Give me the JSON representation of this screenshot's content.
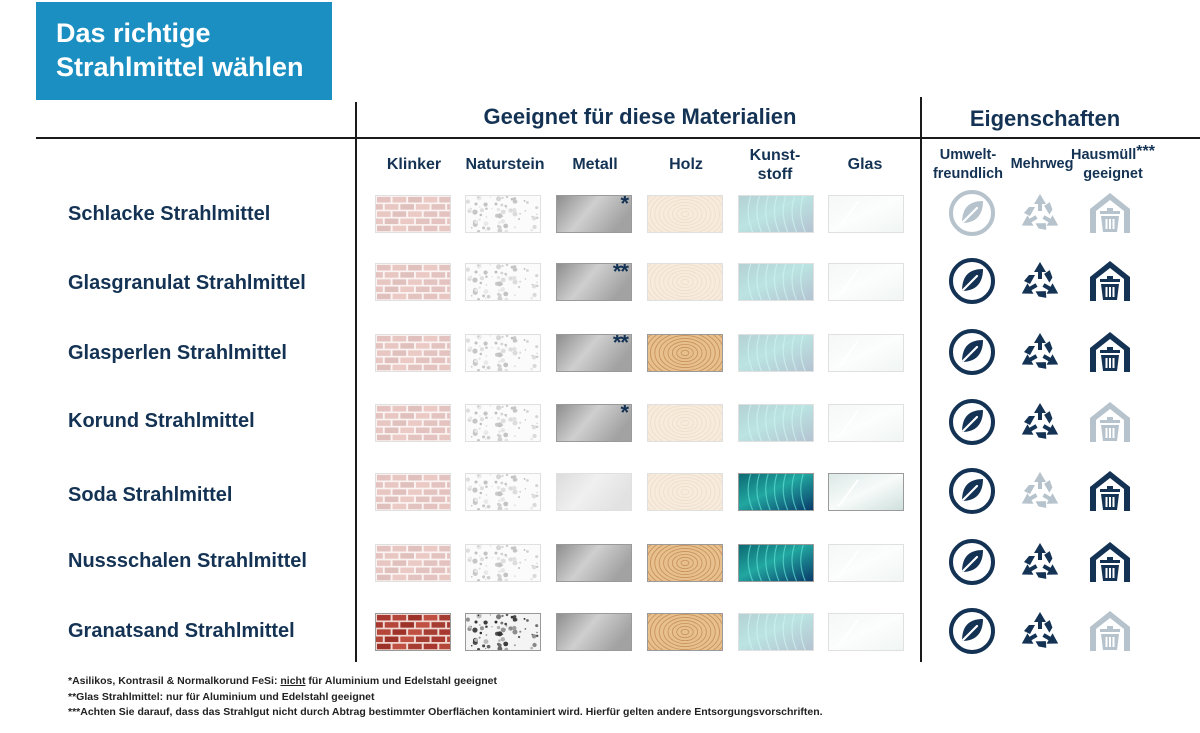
{
  "title": {
    "line1": "Das richtige",
    "line2": "Strahlmittel wählen"
  },
  "sections": {
    "materials": "Geeignet für diese Materialien",
    "properties": "Eigenschaften"
  },
  "material_columns": [
    {
      "key": "klinker",
      "line1": "Klinker",
      "line2": ""
    },
    {
      "key": "naturstein",
      "line1": "Naturstein",
      "line2": ""
    },
    {
      "key": "metall",
      "line1": "Metall",
      "line2": ""
    },
    {
      "key": "holz",
      "line1": "Holz",
      "line2": ""
    },
    {
      "key": "kunststoff",
      "line1": "Kunst-",
      "line2": "stoff"
    },
    {
      "key": "glas",
      "line1": "Glas",
      "line2": ""
    }
  ],
  "property_columns": [
    {
      "key": "umwelt",
      "line1": "Umwelt-",
      "line2": "freundlich",
      "sup": ""
    },
    {
      "key": "mehrweg",
      "line1": "Mehrweg",
      "line2": "",
      "sup": ""
    },
    {
      "key": "hausmuell",
      "line1": "Hausmüll",
      "line2": "geeignet",
      "sup": "***"
    }
  ],
  "colors": {
    "title_bg": "#1b8fc1",
    "text": "#143354",
    "icon_active": "#143354",
    "icon_inactive": "#b6c3cc"
  },
  "icons": {
    "umwelt": "leaf-circle-icon",
    "mehrweg": "recycle-icon",
    "hausmuell": "trash-bin-icon"
  },
  "rows": [
    {
      "name": "Schlacke Strahlmittel",
      "materials": {
        "klinker": false,
        "naturstein": false,
        "metall": true,
        "holz": false,
        "kunststoff": false,
        "glas": false
      },
      "metall_note": "*",
      "properties": {
        "umwelt": false,
        "mehrweg": false,
        "hausmuell": false
      }
    },
    {
      "name": "Glasgranulat Strahlmittel",
      "materials": {
        "klinker": false,
        "naturstein": false,
        "metall": true,
        "holz": false,
        "kunststoff": false,
        "glas": false
      },
      "metall_note": "**",
      "properties": {
        "umwelt": true,
        "mehrweg": true,
        "hausmuell": true
      }
    },
    {
      "name": "Glasperlen Strahlmittel",
      "materials": {
        "klinker": false,
        "naturstein": false,
        "metall": true,
        "holz": true,
        "kunststoff": false,
        "glas": false
      },
      "metall_note": "**",
      "properties": {
        "umwelt": true,
        "mehrweg": true,
        "hausmuell": true
      }
    },
    {
      "name": "Korund Strahlmittel",
      "materials": {
        "klinker": false,
        "naturstein": false,
        "metall": true,
        "holz": false,
        "kunststoff": false,
        "glas": false
      },
      "metall_note": "*",
      "properties": {
        "umwelt": true,
        "mehrweg": true,
        "hausmuell": false
      }
    },
    {
      "name": "Soda Strahlmittel",
      "materials": {
        "klinker": false,
        "naturstein": false,
        "metall": false,
        "holz": false,
        "kunststoff": true,
        "glas": true
      },
      "metall_note": "",
      "properties": {
        "umwelt": true,
        "mehrweg": false,
        "hausmuell": true
      }
    },
    {
      "name": "Nussschalen Strahlmittel",
      "materials": {
        "klinker": false,
        "naturstein": false,
        "metall": true,
        "holz": true,
        "kunststoff": true,
        "glas": false
      },
      "metall_note": "",
      "properties": {
        "umwelt": true,
        "mehrweg": true,
        "hausmuell": true
      }
    },
    {
      "name": "Granatsand Strahlmittel",
      "materials": {
        "klinker": true,
        "naturstein": true,
        "metall": true,
        "holz": true,
        "kunststoff": false,
        "glas": false
      },
      "metall_note": "",
      "properties": {
        "umwelt": true,
        "mehrweg": true,
        "hausmuell": false
      }
    }
  ],
  "footnotes": {
    "f1_pre": "*Asilikos, Kontrasil & Normalkorund FeSi: ",
    "f1_underline": "nicht",
    "f1_post": " für Aluminium und Edelstahl geeignet",
    "f2": "**Glas Strahlmittel: nur für Aluminium und Edelstahl geeignet",
    "f3": "***Achten Sie darauf, dass das Strahlgut nicht durch Abtrag bestimmter Oberflächen kontaminiert wird. Hierfür gelten andere Entsorgungsvorschriften."
  }
}
